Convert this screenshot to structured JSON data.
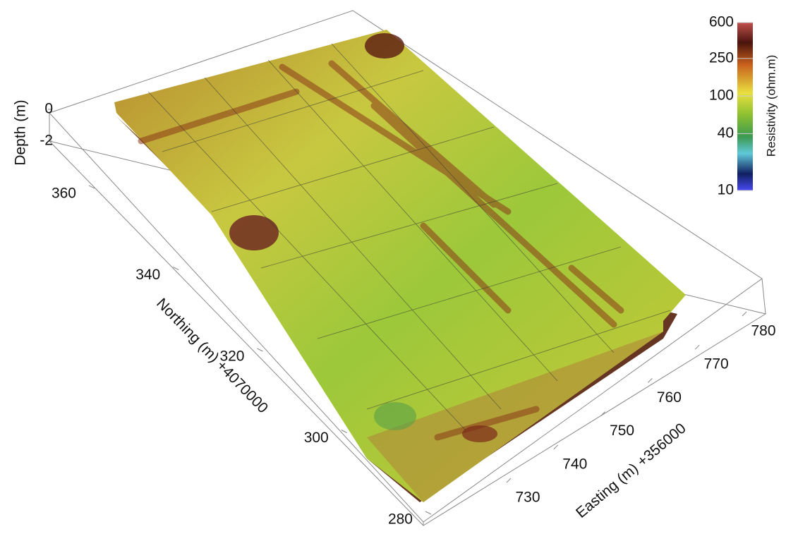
{
  "chart_data": {
    "type": "volume",
    "x_label": "Easting (m) +356000",
    "xlim": [
      730,
      780
    ],
    "xticks": [
      730,
      740,
      750,
      760,
      770,
      780
    ],
    "y_label": "Northing (m) +4070000",
    "ylim": [
      280,
      360
    ],
    "yticks": [
      280,
      300,
      320,
      340,
      360
    ],
    "z_label": "Depth (m)",
    "zlim": [
      -2,
      0
    ],
    "zticks": [
      0,
      -2
    ],
    "colorbar": {
      "label": "Resistivity (ohm.m)",
      "log_scale": true,
      "lim": [
        10,
        600
      ],
      "ticks": [
        10,
        40,
        100,
        250,
        600
      ]
    }
  }
}
